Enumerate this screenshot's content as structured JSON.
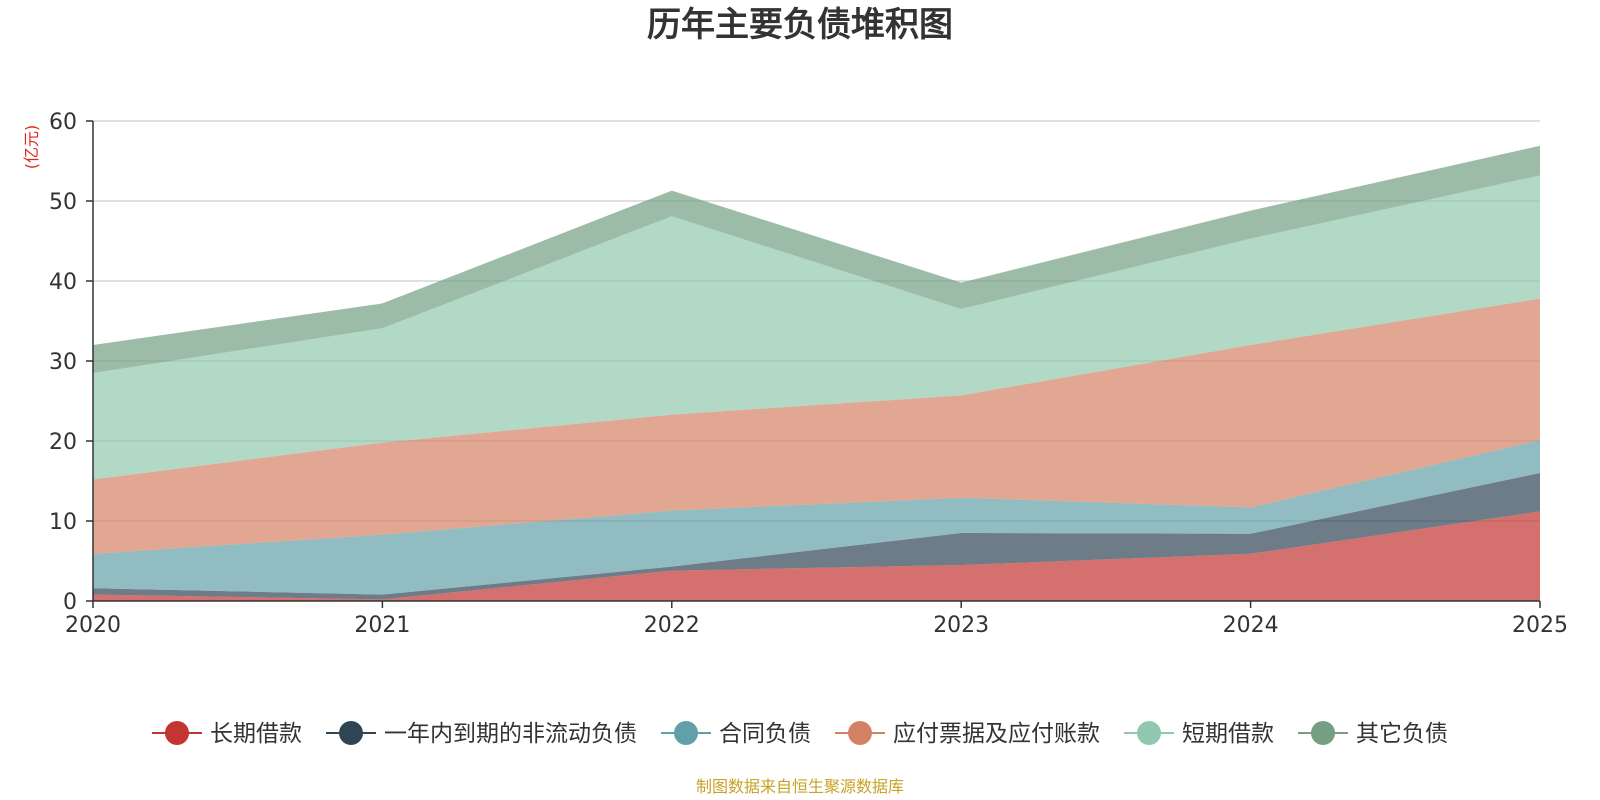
{
  "chart_data": {
    "type": "area",
    "title": "历年主要负债堆积图",
    "unit": "(亿元)",
    "source": "制图数据来自恒生聚源数据库",
    "x": [
      "2020",
      "2021",
      "2022",
      "2023",
      "2024",
      "2025"
    ],
    "ylim": [
      0,
      60
    ],
    "yticks": [
      "0",
      "10",
      "20",
      "30",
      "40",
      "50",
      "60"
    ],
    "stacked": true,
    "grid": true,
    "legend_position": "bottom",
    "series": [
      {
        "name": "长期借款",
        "values": [
          0.8,
          0.2,
          3.8,
          4.5,
          5.9,
          11.2
        ],
        "color": "#c23531"
      },
      {
        "name": "一年内到期的非流动负债",
        "values": [
          0.8,
          0.6,
          0.5,
          4.0,
          2.5,
          4.8
        ],
        "color": "#2f4554"
      },
      {
        "name": "合同负债",
        "values": [
          4.3,
          7.5,
          7.0,
          4.4,
          3.3,
          4.1
        ],
        "color": "#61a0a8"
      },
      {
        "name": "应付票据及应付账款",
        "values": [
          9.3,
          11.5,
          12.0,
          12.8,
          20.3,
          17.7
        ],
        "color": "#d48265"
      },
      {
        "name": "短期借款",
        "values": [
          13.3,
          14.3,
          24.8,
          10.8,
          13.3,
          15.4
        ],
        "color": "#91c7ae"
      },
      {
        "name": "其它负债",
        "values": [
          3.5,
          3.1,
          3.2,
          3.3,
          3.5,
          3.7
        ],
        "color": "#749f83"
      }
    ]
  }
}
